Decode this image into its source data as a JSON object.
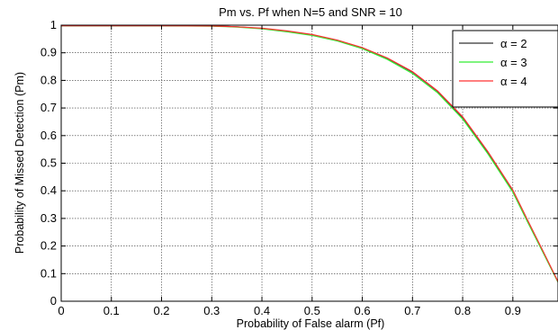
{
  "chart_data": {
    "type": "line",
    "title": "Pm vs. Pf when N=5 and SNR = 10",
    "xlabel": "Probability of False alarm (Pf)",
    "ylabel": "Probability of Missed Detection (Pm)",
    "xlim": [
      0,
      0.99
    ],
    "ylim": [
      0,
      1
    ],
    "xticks": [
      "0",
      "0.1",
      "0.2",
      "0.3",
      "0.4",
      "0.5",
      "0.6",
      "0.7",
      "0.8",
      "0.9"
    ],
    "xtick_values": [
      0,
      0.1,
      0.2,
      0.3,
      0.4,
      0.5,
      0.6,
      0.7,
      0.8,
      0.9
    ],
    "yticks": [
      "0",
      "0.1",
      "0.2",
      "0.3",
      "0.4",
      "0.5",
      "0.6",
      "0.7",
      "0.8",
      "0.9",
      "1"
    ],
    "ytick_values": [
      0,
      0.1,
      0.2,
      0.3,
      0.4,
      0.5,
      0.6,
      0.7,
      0.8,
      0.9,
      1
    ],
    "grid": true,
    "legend_position": "top-right",
    "series": [
      {
        "name": "α = 2",
        "color": "#333333",
        "x": [
          0,
          0.1,
          0.2,
          0.3,
          0.35,
          0.4,
          0.45,
          0.5,
          0.55,
          0.6,
          0.65,
          0.7,
          0.75,
          0.8,
          0.85,
          0.9,
          0.93,
          0.96,
          0.99
        ],
        "y": [
          0.998,
          0.998,
          0.998,
          0.997,
          0.994,
          0.988,
          0.978,
          0.965,
          0.945,
          0.918,
          0.88,
          0.83,
          0.76,
          0.665,
          0.54,
          0.4,
          0.29,
          0.18,
          0.07
        ]
      },
      {
        "name": "α = 3",
        "color": "#33ee33",
        "x": [
          0,
          0.1,
          0.2,
          0.3,
          0.35,
          0.4,
          0.45,
          0.5,
          0.55,
          0.6,
          0.65,
          0.7,
          0.75,
          0.8,
          0.85,
          0.9,
          0.93,
          0.96,
          0.99
        ],
        "y": [
          0.998,
          0.998,
          0.998,
          0.996,
          0.993,
          0.987,
          0.976,
          0.963,
          0.943,
          0.915,
          0.876,
          0.825,
          0.755,
          0.66,
          0.535,
          0.395,
          0.285,
          0.177,
          0.069
        ]
      },
      {
        "name": "α = 4",
        "color": "#ff3333",
        "x": [
          0,
          0.1,
          0.2,
          0.3,
          0.35,
          0.4,
          0.45,
          0.5,
          0.55,
          0.6,
          0.65,
          0.7,
          0.75,
          0.8,
          0.85,
          0.9,
          0.93,
          0.96,
          0.99
        ],
        "y": [
          0.998,
          0.998,
          0.998,
          0.997,
          0.994,
          0.989,
          0.979,
          0.966,
          0.946,
          0.919,
          0.881,
          0.832,
          0.762,
          0.668,
          0.543,
          0.403,
          0.292,
          0.182,
          0.071
        ]
      }
    ]
  }
}
